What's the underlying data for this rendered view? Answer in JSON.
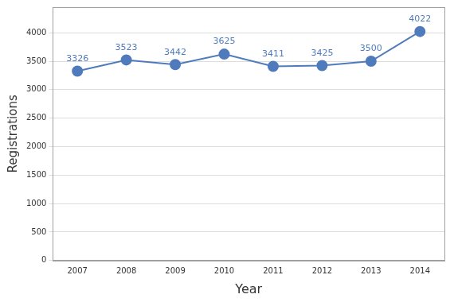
{
  "chart_data": {
    "type": "line",
    "x_label": "Year",
    "y_label": "Registrations",
    "categories": [
      "2007",
      "2008",
      "2009",
      "2010",
      "2011",
      "2012",
      "2013",
      "2014"
    ],
    "values": [
      3326,
      3523,
      3442,
      3625,
      3411,
      3425,
      3500,
      4022
    ],
    "color": "#4f7bbd",
    "marker": "circle",
    "ylim": [
      0,
      4450
    ],
    "yticks": [
      0,
      500,
      1000,
      1500,
      2000,
      2500,
      3000,
      3500,
      4000
    ],
    "grid": true,
    "data_labels": true
  }
}
